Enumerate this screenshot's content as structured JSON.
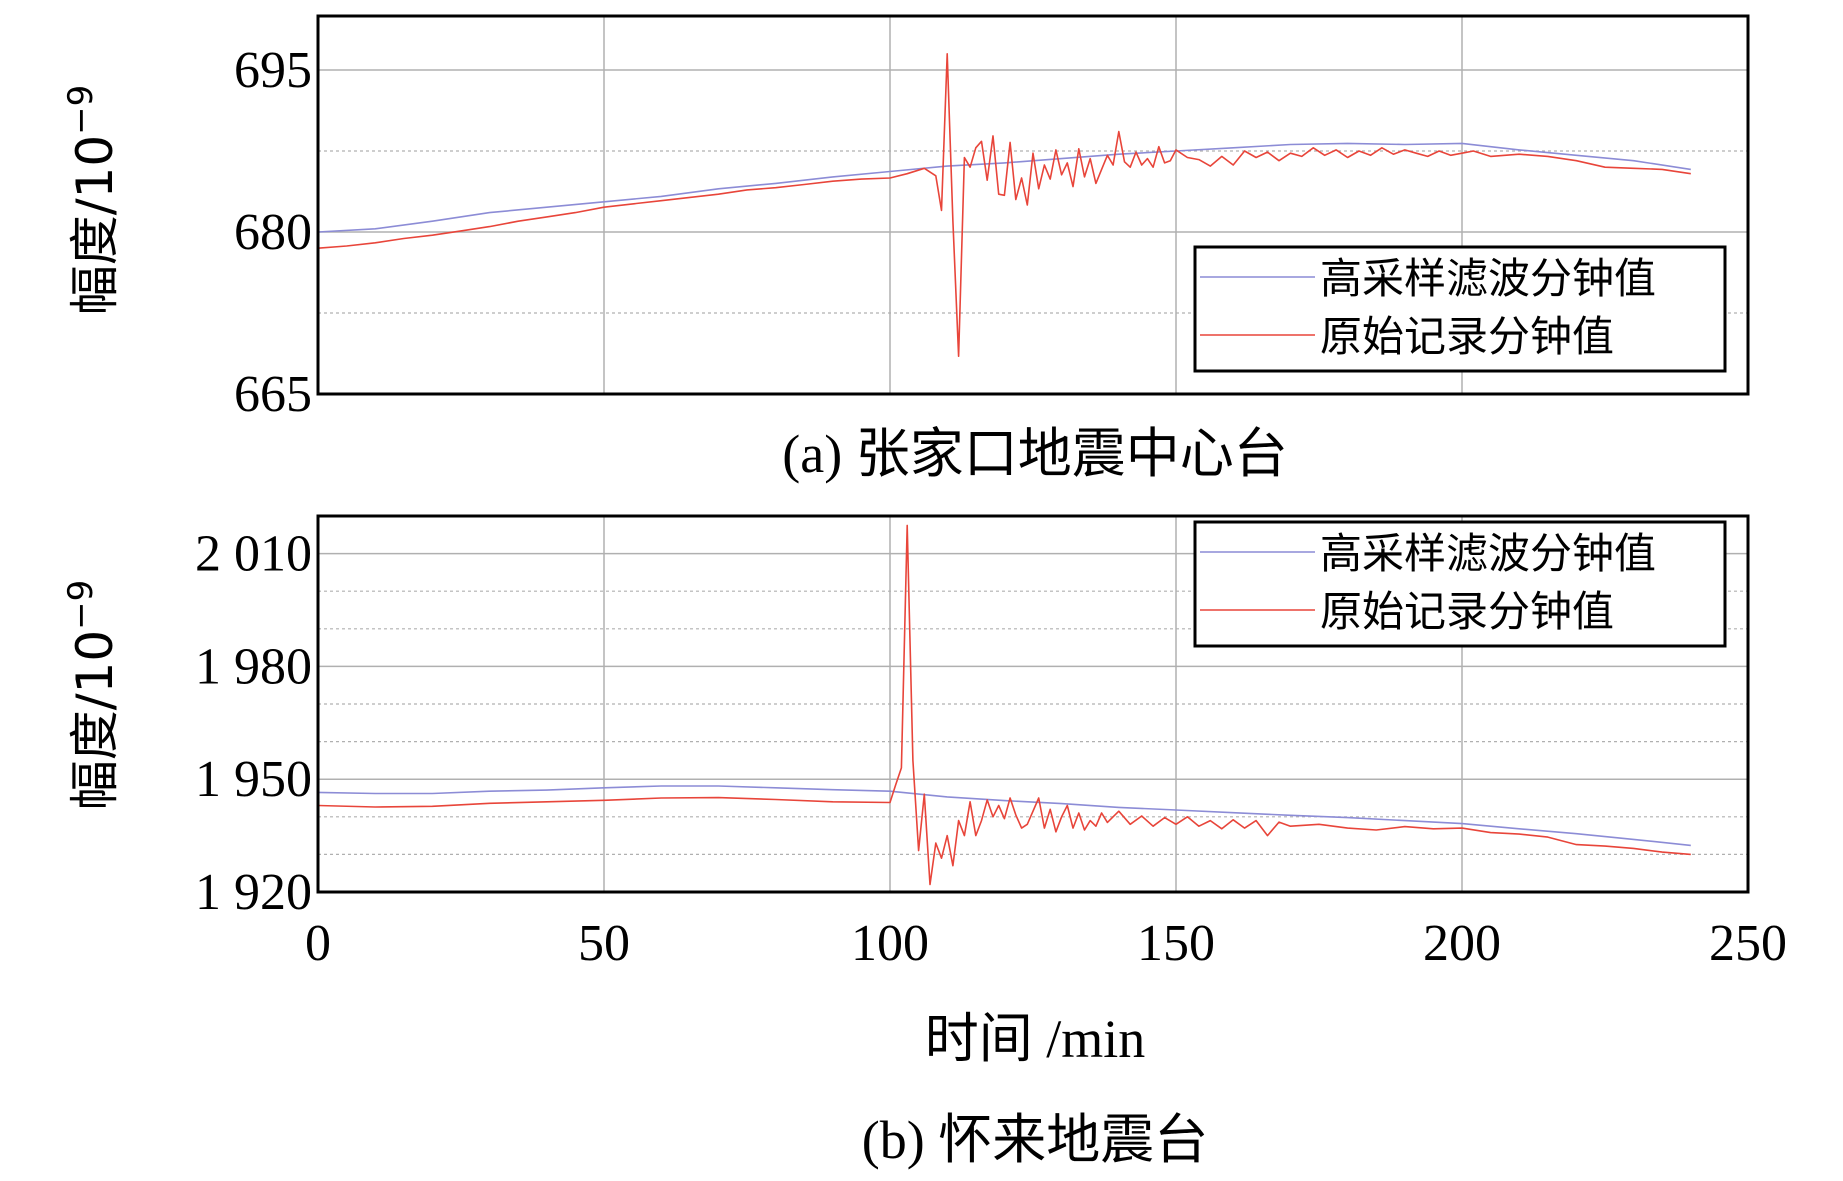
{
  "colors": {
    "filtered": "#8c8cd6",
    "raw": "#e8453a",
    "grid": "#b0b0b0",
    "frame": "#000000"
  },
  "shared_xlabel": "时间 /min",
  "chart_data": [
    {
      "type": "line",
      "caption": "(a) 张家口地震中心台",
      "ylabel": "幅度/10",
      "ylabel_exp": "−9",
      "xlim": [
        0,
        250
      ],
      "ylim": [
        665,
        700
      ],
      "x_ticks": [
        0,
        50,
        100,
        150,
        200,
        250
      ],
      "y_ticks": [
        665,
        680,
        695
      ],
      "y_tick_labels": [
        "665",
        "680",
        "695"
      ],
      "y_minor_grid": [
        672.5,
        687.5
      ],
      "legend": {
        "position": "bottom-right",
        "entries": [
          "高采样滤波分钟值",
          "原始记录分钟值"
        ]
      },
      "series": [
        {
          "name": "高采样滤波分钟值",
          "color_key": "filtered",
          "x": [
            0,
            10,
            20,
            30,
            40,
            50,
            60,
            70,
            80,
            90,
            100,
            110,
            120,
            130,
            140,
            150,
            160,
            170,
            180,
            190,
            200,
            210,
            220,
            230,
            240
          ],
          "y": [
            680.0,
            680.3,
            681.0,
            681.8,
            682.3,
            682.8,
            683.3,
            684.0,
            684.5,
            685.1,
            685.6,
            686.1,
            686.4,
            686.8,
            687.2,
            687.5,
            687.8,
            688.1,
            688.2,
            688.1,
            688.2,
            687.6,
            687.1,
            686.6,
            685.8
          ]
        },
        {
          "name": "原始记录分钟值",
          "color_key": "raw",
          "x": [
            0,
            5,
            10,
            15,
            20,
            25,
            30,
            35,
            40,
            45,
            50,
            55,
            60,
            65,
            70,
            75,
            80,
            85,
            90,
            95,
            100,
            103,
            106,
            108,
            109,
            110,
            111,
            112,
            113,
            114,
            115,
            116,
            117,
            118,
            119,
            120,
            121,
            122,
            123,
            124,
            125,
            126,
            127,
            128,
            129,
            130,
            131,
            132,
            133,
            134,
            135,
            136,
            137,
            138,
            139,
            140,
            141,
            142,
            143,
            144,
            145,
            146,
            147,
            148,
            149,
            150,
            152,
            154,
            156,
            158,
            160,
            162,
            164,
            166,
            168,
            170,
            172,
            174,
            176,
            178,
            180,
            182,
            184,
            186,
            188,
            190,
            192,
            194,
            196,
            198,
            200,
            202,
            205,
            210,
            215,
            220,
            225,
            230,
            235,
            240
          ],
          "y": [
            678.5,
            678.7,
            679.0,
            679.4,
            679.7,
            680.1,
            680.5,
            681.0,
            681.4,
            681.8,
            682.3,
            682.6,
            682.9,
            683.2,
            683.5,
            683.9,
            684.1,
            684.4,
            684.7,
            684.9,
            685.0,
            685.4,
            685.9,
            685.2,
            682.0,
            696.5,
            681.0,
            668.5,
            686.9,
            686.0,
            687.8,
            688.4,
            684.8,
            688.9,
            683.5,
            683.4,
            688.3,
            683.0,
            685.0,
            682.5,
            687.3,
            684.0,
            686.2,
            684.9,
            687.6,
            685.3,
            686.4,
            684.2,
            687.7,
            685.1,
            686.8,
            684.5,
            685.8,
            687.1,
            686.2,
            689.3,
            686.5,
            686.0,
            687.4,
            686.2,
            686.8,
            686.0,
            687.9,
            686.4,
            686.6,
            687.6,
            686.9,
            686.7,
            686.1,
            687.0,
            686.2,
            687.5,
            686.9,
            687.4,
            686.6,
            687.3,
            687.0,
            687.8,
            687.1,
            687.6,
            686.9,
            687.5,
            687.1,
            687.8,
            687.2,
            687.6,
            687.3,
            687.0,
            687.5,
            687.1,
            687.3,
            687.5,
            687.0,
            687.2,
            687.0,
            686.6,
            686.0,
            685.9,
            685.8,
            685.4
          ]
        }
      ]
    },
    {
      "type": "line",
      "caption": "(b) 怀来地震台",
      "ylabel": "幅度/10",
      "ylabel_exp": "−9",
      "xlabel": "时间 /min",
      "xlim": [
        0,
        250
      ],
      "ylim": [
        1920,
        2020
      ],
      "x_ticks": [
        0,
        50,
        100,
        150,
        200,
        250
      ],
      "x_tick_labels": [
        "0",
        "50",
        "100",
        "150",
        "200",
        "250"
      ],
      "y_ticks": [
        1920,
        1950,
        1980,
        2010
      ],
      "y_tick_labels": [
        "1 920",
        "1 950",
        "1 980",
        "2 010"
      ],
      "y_minor_grid": [
        1930,
        1940,
        1960,
        1970,
        1990,
        2000
      ],
      "legend": {
        "position": "top-right",
        "entries": [
          "高采样滤波分钟值",
          "原始记录分钟值"
        ]
      },
      "series": [
        {
          "name": "高采样滤波分钟值",
          "color_key": "filtered",
          "x": [
            0,
            10,
            20,
            30,
            40,
            50,
            60,
            70,
            80,
            90,
            100,
            110,
            120,
            130,
            140,
            150,
            160,
            170,
            180,
            190,
            200,
            210,
            220,
            230,
            240
          ],
          "y": [
            1946.5,
            1946.2,
            1946.2,
            1946.8,
            1947.1,
            1947.7,
            1948.2,
            1948.2,
            1947.7,
            1947.2,
            1946.8,
            1945.3,
            1944.3,
            1943.5,
            1942.5,
            1941.8,
            1941.1,
            1940.4,
            1939.8,
            1939.0,
            1938.2,
            1936.8,
            1935.5,
            1934.0,
            1932.4
          ]
        },
        {
          "name": "原始记录分钟值",
          "color_key": "raw",
          "x": [
            0,
            10,
            20,
            30,
            40,
            50,
            60,
            70,
            80,
            90,
            100,
            101,
            102,
            103,
            104,
            105,
            106,
            107,
            108,
            109,
            110,
            111,
            112,
            113,
            114,
            115,
            116,
            117,
            118,
            119,
            120,
            121,
            122,
            123,
            124,
            125,
            126,
            127,
            128,
            129,
            130,
            131,
            132,
            133,
            134,
            135,
            136,
            137,
            138,
            139,
            140,
            142,
            144,
            146,
            148,
            150,
            152,
            154,
            156,
            158,
            160,
            162,
            164,
            166,
            168,
            170,
            175,
            180,
            185,
            190,
            195,
            200,
            205,
            210,
            215,
            220,
            225,
            230,
            235,
            240
          ],
          "y": [
            1943.0,
            1942.6,
            1942.8,
            1943.6,
            1944.0,
            1944.4,
            1945.0,
            1945.1,
            1944.6,
            1944.0,
            1943.8,
            1948.5,
            1953.0,
            2017.5,
            1955.0,
            1931.0,
            1946.0,
            1922.0,
            1933.0,
            1929.0,
            1935.0,
            1927.0,
            1939.0,
            1935.0,
            1944.0,
            1935.0,
            1939.0,
            1944.5,
            1940.0,
            1943.0,
            1939.5,
            1945.0,
            1940.5,
            1937.0,
            1938.0,
            1941.5,
            1945.0,
            1937.0,
            1942.0,
            1936.0,
            1940.0,
            1943.0,
            1937.0,
            1941.0,
            1936.5,
            1939.0,
            1937.5,
            1941.0,
            1938.5,
            1940.0,
            1941.5,
            1938.0,
            1940.2,
            1937.5,
            1939.8,
            1938.0,
            1940.0,
            1937.5,
            1939.0,
            1936.8,
            1939.2,
            1937.0,
            1939.0,
            1935.0,
            1938.6,
            1937.5,
            1938.0,
            1937.0,
            1936.5,
            1937.4,
            1936.8,
            1937.0,
            1935.8,
            1935.4,
            1934.6,
            1932.6,
            1932.2,
            1931.6,
            1930.6,
            1930.0
          ]
        }
      ]
    }
  ]
}
